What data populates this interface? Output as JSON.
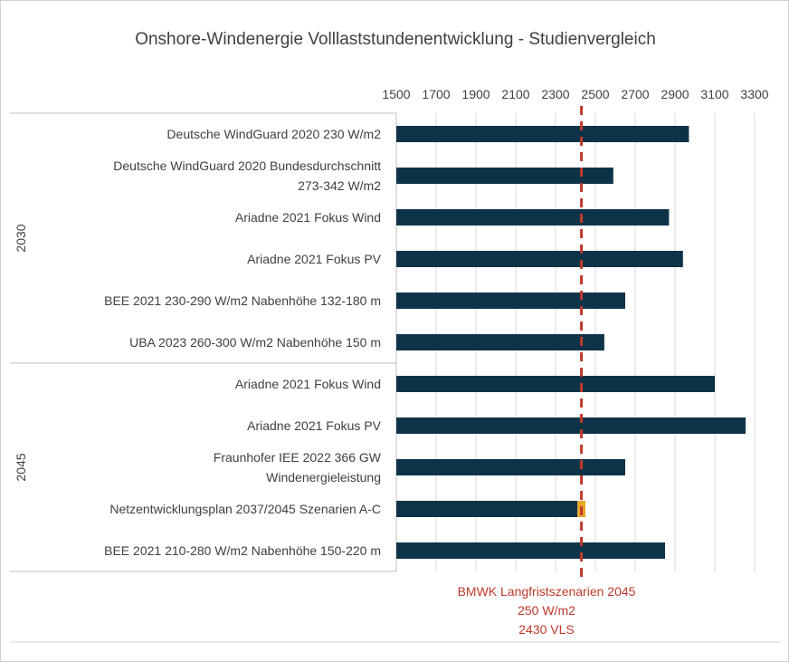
{
  "chart_data": {
    "type": "bar",
    "orientation": "horizontal",
    "title": "Onshore-Windenergie Volllaststundenentwicklung - Studienvergleich",
    "xlim": [
      1500,
      3300
    ],
    "ticks": [
      1500,
      1700,
      1900,
      2100,
      2300,
      2500,
      2700,
      2900,
      3100,
      3300
    ],
    "grid": true,
    "groups": [
      {
        "label": "2030",
        "categories": [
          "Deutsche WindGuard 2020 230 W/m2",
          "Deutsche WindGuard 2020 Bundesdurchschnitt 273-342 W/m2",
          "Ariadne 2021 Fokus Wind",
          "Ariadne 2021 Fokus PV",
          "BEE 2021 230-290 W/m2 Nabenhöhe 132-180 m",
          "UBA 2023 260-300 W/m2 Nabenhöhe 150 m"
        ],
        "values": [
          2970,
          2590,
          2870,
          2940,
          2650,
          2545
        ]
      },
      {
        "label": "2045",
        "categories": [
          "Ariadne 2021 Fokus Wind",
          "Ariadne 2021 Fokus PV",
          "Fraunhofer IEE 2022 366 GW Windenergieleistung",
          "Netzentwicklungsplan 2037/2045 Szenarien A-C",
          "BEE 2021 210-280 W/m2 Nabenhöhe 150-220 m"
        ],
        "values": [
          3100,
          3255,
          2650,
          2410,
          2850
        ],
        "range_extension": [
          null,
          null,
          null,
          2450,
          null
        ]
      }
    ],
    "reference_line": {
      "value": 2430,
      "label": [
        "BMWK Langfristszenarien 2045",
        "250 W/m2",
        "2430 VLS"
      ]
    },
    "colors": {
      "bar": "#0d3349",
      "range": "#e8a623",
      "reference": "#c0392b"
    }
  }
}
